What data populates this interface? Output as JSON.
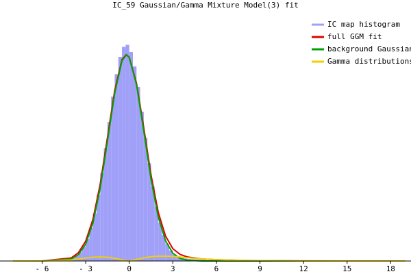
{
  "chart_data": {
    "type": "histogram",
    "title": "IC_59 Gaussian/Gamma Mixture Model(3) fit",
    "xlim": [
      -8.9,
      19.4
    ],
    "ylim": [
      0,
      100
    ],
    "xticks": [
      {
        "value": -6,
        "label": "- 6"
      },
      {
        "value": -3,
        "label": "- 3"
      },
      0,
      3,
      6,
      9,
      12,
      15,
      18
    ],
    "legend": "upper right",
    "histogram": {
      "name": "IC map histogram",
      "color": "#a0a0f8",
      "bins": [
        -4,
        -3.75,
        -3.5,
        -3.25,
        -3,
        -2.75,
        -2.5,
        -2.25,
        -2,
        -1.75,
        -1.5,
        -1.25,
        -1,
        -0.75,
        -0.5,
        -0.25,
        0,
        0.25,
        0.5,
        0.75,
        1,
        1.25,
        1.5,
        1.75,
        2,
        2.25,
        2.5,
        2.75,
        3,
        3.25,
        3.5,
        3.75,
        4,
        4.25,
        4.5,
        4.75,
        5,
        5.25,
        5.5,
        5.75,
        6
      ],
      "values": [
        1.1,
        2.0,
        3.4,
        5.6,
        8.7,
        13.1,
        18.9,
        26.2,
        35.0,
        44.9,
        55.3,
        65.4,
        74.3,
        81.2,
        85.2,
        86.0,
        83.1,
        77.4,
        69.2,
        59.4,
        49.0,
        38.9,
        29.6,
        21.6,
        15.3,
        10.3,
        6.7,
        4.2,
        2.5,
        1.6,
        1.2,
        1.0,
        0.8,
        0.7,
        0.6,
        0.5,
        0.4,
        0.3,
        0.3,
        0.2
      ]
    },
    "series": [
      {
        "name": "full GGM fit",
        "color": "#e00000",
        "x": [
          -8,
          -6,
          -4,
          -3.5,
          -3,
          -2.5,
          -2,
          -1.5,
          -1,
          -0.5,
          -0.2,
          0,
          0.5,
          1,
          1.5,
          2,
          2.5,
          3,
          3.5,
          4,
          5,
          6,
          8,
          10,
          12,
          15,
          19
        ],
        "values": [
          0,
          0.05,
          1.2,
          3.3,
          7.9,
          16.6,
          30.6,
          49.2,
          67.9,
          80.1,
          82.1,
          81.0,
          70.7,
          53.0,
          34.2,
          19.3,
          9.9,
          4.9,
          2.6,
          1.6,
          0.8,
          0.5,
          0.2,
          0.1,
          0.05,
          0,
          0
        ]
      },
      {
        "name": "background Gaussian",
        "color": "#00a000",
        "x": [
          -8,
          -6,
          -4,
          -3.5,
          -3,
          -2.5,
          -2,
          -1.5,
          -1,
          -0.5,
          -0.2,
          0,
          0.5,
          1,
          1.5,
          2,
          2.5,
          3,
          3.5,
          4,
          5,
          6,
          8,
          10,
          12,
          15,
          19
        ],
        "values": [
          0,
          0,
          0.8,
          2.5,
          6.7,
          15.1,
          29.0,
          47.7,
          66.8,
          79.7,
          82.0,
          80.9,
          70.1,
          51.7,
          32.5,
          17.4,
          8.0,
          3.1,
          1.0,
          0.3,
          0,
          0,
          0,
          0,
          0,
          0,
          0
        ]
      },
      {
        "name": "Gamma distributions",
        "color": "#f0d000",
        "x": [
          -8,
          -6,
          -4,
          -3.5,
          -3,
          -2.5,
          -2,
          -1.5,
          -1,
          -0.5,
          -0.2,
          0,
          0.5,
          1,
          1.5,
          2,
          2.5,
          3,
          3.5,
          4,
          5,
          6,
          8,
          10,
          12,
          15,
          19
        ],
        "values": [
          0,
          0.05,
          0.4,
          0.8,
          1.2,
          1.5,
          1.6,
          1.5,
          1.1,
          0.4,
          0.1,
          0.05,
          0.6,
          1.3,
          1.7,
          1.9,
          1.9,
          1.8,
          1.6,
          1.3,
          0.8,
          0.5,
          0.2,
          0.1,
          0.05,
          0,
          0
        ]
      }
    ]
  }
}
